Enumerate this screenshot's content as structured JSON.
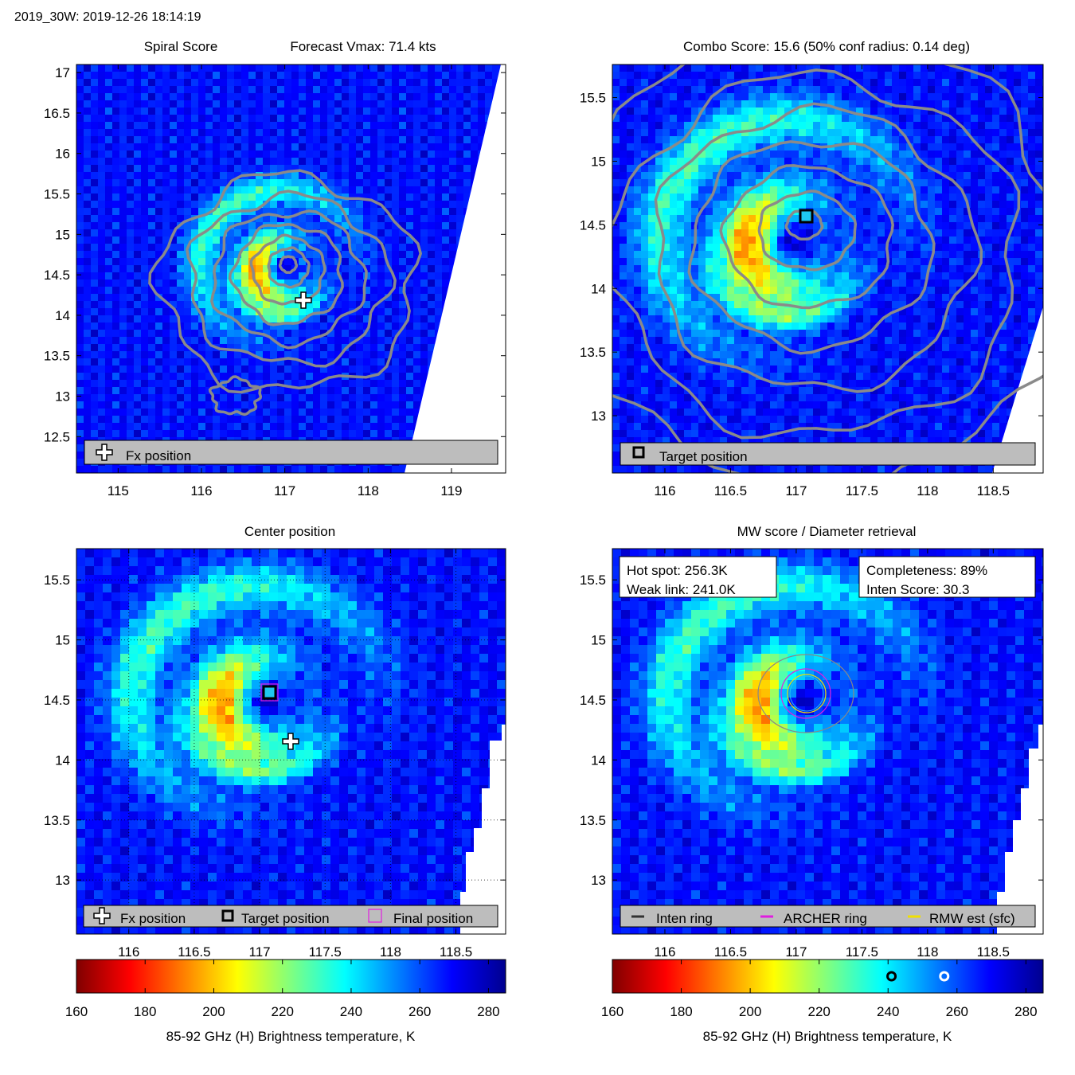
{
  "header": {
    "title": "2019_30W: 2019-12-26 18:14:19"
  },
  "colorbar_label": "85-92 GHz (H) Brightness temperature, K",
  "colors": {
    "contour": "#8a8a8a",
    "legend_bg": "#bdbdbd",
    "archer": "#e01ee0",
    "rmw": "#f0e000",
    "inten": "#333333",
    "target_inner": "#1ec8f0"
  },
  "panels": {
    "spiral": {
      "title_left": "Spiral Score",
      "title_right": "Forecast Vmax: 71.4 kts",
      "legend": [
        "Fx position"
      ]
    },
    "combo": {
      "title": "Combo Score: 15.6  (50% conf radius: 0.14 deg)",
      "legend": [
        "Target position"
      ]
    },
    "center": {
      "title": "Center position",
      "legend": [
        "Fx position",
        "Target position",
        "Final position"
      ]
    },
    "mw": {
      "title": "MW score / Diameter retrieval",
      "info_left": [
        "Hot spot: 256.3K",
        "Weak link: 241.0K"
      ],
      "info_right": [
        "Completeness: 89%",
        "Inten Score: 30.3"
      ],
      "legend": [
        "Inten ring",
        "ARCHER ring",
        "RMW est (sfc)"
      ]
    }
  },
  "chart_data": [
    {
      "type": "heatmap",
      "name": "Spiral Score",
      "xlim": [
        114.5,
        119.65
      ],
      "ylim": [
        12.05,
        17.1
      ],
      "x_ticks": [
        115,
        116,
        117,
        118,
        119
      ],
      "y_ticks": [
        12.5,
        13,
        13.5,
        14,
        14.5,
        15,
        15.5,
        16,
        16.5,
        17
      ],
      "markers": {
        "fx_position": [
          117.2,
          14.17
        ]
      }
    },
    {
      "type": "heatmap",
      "name": "Combo Score",
      "xlim": [
        115.6,
        118.88
      ],
      "ylim": [
        12.55,
        15.76
      ],
      "x_ticks": [
        116,
        116.5,
        117,
        117.5,
        118,
        118.5
      ],
      "y_ticks": [
        13,
        13.5,
        14,
        14.5,
        15,
        15.5
      ],
      "markers": {
        "target_position": [
          117.07,
          14.57
        ]
      }
    },
    {
      "type": "heatmap",
      "name": "Center position",
      "xlim": [
        115.6,
        118.88
      ],
      "ylim": [
        12.55,
        15.76
      ],
      "x_ticks": [
        116,
        116.5,
        117,
        117.5,
        118,
        118.5
      ],
      "y_ticks": [
        13,
        13.5,
        14,
        14.5,
        15,
        15.5
      ],
      "grid": true,
      "markers": {
        "fx_position": [
          117.22,
          14.16
        ],
        "target_position": [
          117.05,
          14.55
        ],
        "final_position": [
          117.05,
          14.55
        ]
      }
    },
    {
      "type": "heatmap",
      "name": "MW score / Diameter retrieval",
      "xlim": [
        115.6,
        118.88
      ],
      "ylim": [
        12.55,
        15.76
      ],
      "x_ticks": [
        116,
        116.5,
        117,
        117.5,
        118,
        118.5
      ],
      "y_ticks": [
        13,
        13.5,
        14,
        14.5,
        15,
        15.5
      ],
      "rings": {
        "center": [
          117.05,
          14.55
        ],
        "inten_ring_deg": 0.38,
        "archer_ring_deg": 0.18,
        "rmw_deg": 0.13
      }
    }
  ],
  "colorbar": {
    "range": [
      160,
      285
    ],
    "ticks": [
      160,
      180,
      200,
      220,
      240,
      260,
      280
    ],
    "markers": {
      "weak_link": 241.0,
      "hot_spot": 256.3
    }
  }
}
